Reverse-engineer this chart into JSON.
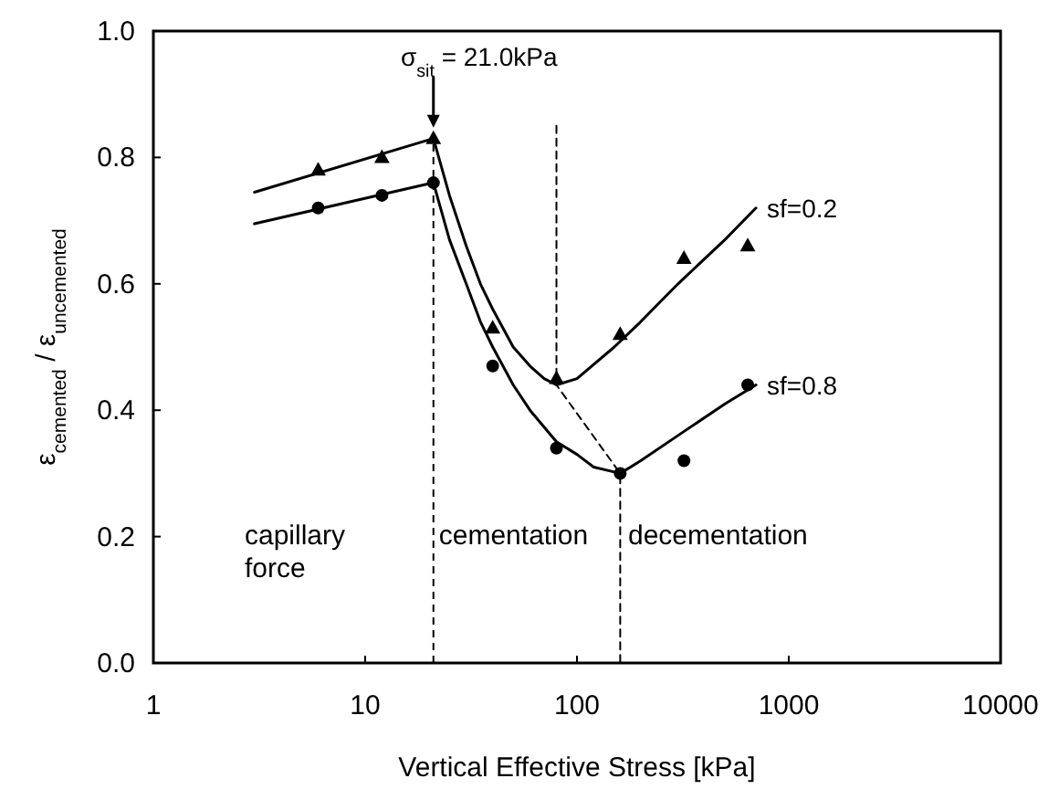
{
  "chart_data": {
    "type": "line",
    "xlabel": "Vertical Effective Stress [kPa]",
    "ylabel": "ε$_{cemented}$ / ε$_{uncemented}$",
    "log": "x",
    "xlim": [
      1,
      10000
    ],
    "xticks": [
      1,
      10,
      100,
      1000,
      10000
    ],
    "ylim": [
      0,
      1
    ],
    "yticks": [
      {
        "value": 0,
        "label": "0.0"
      },
      {
        "value": 0.2,
        "label": "0.2"
      },
      {
        "value": 0.4,
        "label": "0.4"
      },
      {
        "value": 0.6,
        "label": "0.6"
      },
      {
        "value": 0.8,
        "label": "0.8"
      },
      {
        "value": 1,
        "label": "1.0"
      }
    ],
    "grid": false,
    "series": [
      {
        "type": "scatter",
        "marker": "triangle",
        "color": "#000000",
        "x": [
          6,
          12,
          21,
          40,
          80,
          160,
          320,
          640
        ],
        "values": [
          0.78,
          0.8,
          0.83,
          0.53,
          0.45,
          0.52,
          0.64,
          0.66
        ]
      },
      {
        "type": "scatter",
        "marker": "circle",
        "color": "#000000",
        "x": [
          6,
          12,
          21,
          40,
          80,
          160,
          320,
          640
        ],
        "values": [
          0.72,
          0.74,
          0.76,
          0.47,
          0.34,
          0.3,
          0.32,
          0.44
        ]
      },
      {
        "name": "sf=0.2",
        "marker": "none",
        "line_style": "solid",
        "color": "#000000",
        "x": [
          3,
          21,
          25,
          30,
          35,
          40,
          50,
          60,
          70,
          80,
          100,
          150,
          200,
          300,
          500,
          700
        ],
        "values": [
          0.745,
          0.83,
          0.74,
          0.66,
          0.6,
          0.56,
          0.5,
          0.47,
          0.45,
          0.44,
          0.45,
          0.5,
          0.54,
          0.6,
          0.67,
          0.72
        ]
      },
      {
        "name": "sf=0.8",
        "marker": "none",
        "line_style": "solid",
        "color": "#000000",
        "x": [
          3,
          21,
          25,
          30,
          35,
          40,
          50,
          60,
          80,
          100,
          120,
          160,
          200,
          300,
          500,
          700
        ],
        "values": [
          0.695,
          0.76,
          0.67,
          0.6,
          0.54,
          0.5,
          0.44,
          0.4,
          0.35,
          0.33,
          0.31,
          0.3,
          0.32,
          0.36,
          0.41,
          0.44
        ]
      },
      {
        "marker": "none",
        "line_style": "dashed",
        "color": "#000000",
        "x": [
          80,
          80,
          160,
          160
        ],
        "values": [
          0.85,
          0.44,
          0.3,
          0
        ]
      }
    ],
    "ref_lines": [
      {
        "axis": "x",
        "value": 21,
        "color": "#000000",
        "line_style": "dashed"
      }
    ],
    "annotations": [
      {
        "text": "σ$_{sit}$ = 21.0kPa",
        "x": 21,
        "y": 0.83
      },
      "capillary\nforce",
      "cementation",
      "decementation"
    ]
  }
}
